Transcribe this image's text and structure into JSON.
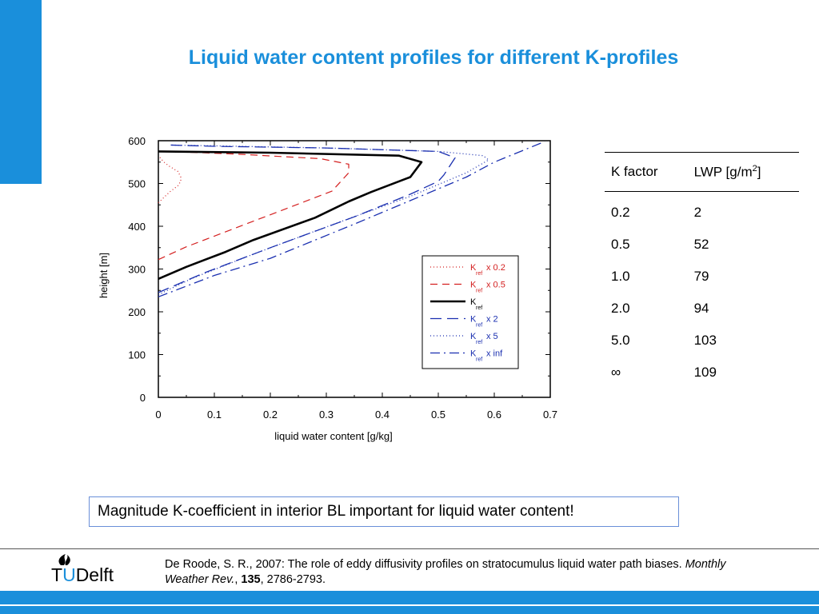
{
  "title": "Liquid water content profiles for different K-profiles",
  "chart_data": {
    "type": "line",
    "xlabel": "liquid water content [g/kg]",
    "ylabel": "height [m]",
    "xlim": [
      0,
      0.7
    ],
    "ylim": [
      0,
      600
    ],
    "xticks": [
      "0",
      "0.1",
      "0.2",
      "0.3",
      "0.4",
      "0.5",
      "0.6",
      "0.7"
    ],
    "yticks": [
      "0",
      "100",
      "200",
      "300",
      "400",
      "500",
      "600"
    ],
    "legend_position": "middle-right",
    "series": [
      {
        "name": "K_ref x 0.2",
        "legend_main": "K",
        "legend_sub": "ref",
        "legend_suffix": "x 0.2",
        "color": "#d42020",
        "dash": "1,3",
        "width": 1.2,
        "points": [
          [
            0,
            455
          ],
          [
            0.02,
            480
          ],
          [
            0.035,
            495
          ],
          [
            0.04,
            505
          ],
          [
            0.04,
            515
          ],
          [
            0.035,
            528
          ],
          [
            0.02,
            540
          ],
          [
            0.01,
            550
          ],
          [
            0,
            565
          ]
        ]
      },
      {
        "name": "K_ref x 0.5",
        "legend_main": "K",
        "legend_sub": "ref",
        "legend_suffix": "x 0.5",
        "color": "#d42020",
        "dash": "9,6",
        "width": 1.2,
        "points": [
          [
            0,
            322
          ],
          [
            0.05,
            352
          ],
          [
            0.13,
            392
          ],
          [
            0.17,
            412
          ],
          [
            0.25,
            452
          ],
          [
            0.31,
            482
          ],
          [
            0.34,
            525
          ],
          [
            0.34,
            545
          ],
          [
            0.29,
            558
          ],
          [
            0.15,
            568
          ],
          [
            0.08,
            572
          ],
          [
            0,
            575
          ]
        ]
      },
      {
        "name": "K_ref",
        "legend_main": "K",
        "legend_sub": "ref",
        "legend_suffix": "",
        "color": "#000000",
        "dash": "",
        "width": 2.6,
        "points": [
          [
            0,
            277
          ],
          [
            0.05,
            305
          ],
          [
            0.12,
            340
          ],
          [
            0.17,
            368
          ],
          [
            0.28,
            420
          ],
          [
            0.34,
            458
          ],
          [
            0.38,
            480
          ],
          [
            0.43,
            505
          ],
          [
            0.45,
            515
          ],
          [
            0.47,
            550
          ],
          [
            0.43,
            565
          ],
          [
            0.2,
            572
          ],
          [
            0,
            575
          ]
        ]
      },
      {
        "name": "K_ref x 2",
        "legend_main": "K",
        "legend_sub": "ref",
        "legend_suffix": "x 2",
        "color": "#1a2fb0",
        "dash": "14,7",
        "width": 1.3,
        "points": [
          [
            0,
            245
          ],
          [
            0.08,
            290
          ],
          [
            0.2,
            350
          ],
          [
            0.35,
            422
          ],
          [
            0.45,
            475
          ],
          [
            0.5,
            505
          ],
          [
            0.51,
            520
          ],
          [
            0.52,
            540
          ],
          [
            0.53,
            560
          ],
          [
            0.5,
            575
          ],
          [
            0.3,
            583
          ],
          [
            0.1,
            587
          ],
          [
            0.02,
            590
          ]
        ]
      },
      {
        "name": "K_ref x 5",
        "legend_main": "K",
        "legend_sub": "ref",
        "legend_suffix": "x 5",
        "color": "#1a2fb0",
        "dash": "1,3",
        "width": 1.3,
        "points": [
          [
            0,
            240
          ],
          [
            0.06,
            278
          ],
          [
            0.17,
            335
          ],
          [
            0.32,
            408
          ],
          [
            0.45,
            470
          ],
          [
            0.55,
            525
          ],
          [
            0.59,
            555
          ],
          [
            0.58,
            565
          ],
          [
            0.5,
            575
          ],
          [
            0.3,
            583
          ],
          [
            0.1,
            588
          ],
          [
            0.02,
            590
          ]
        ]
      },
      {
        "name": "K_ref x inf",
        "legend_main": "K",
        "legend_sub": "ref",
        "legend_suffix": "x inf",
        "color": "#1a2fb0",
        "dash": "12,5,2,5",
        "width": 1.3,
        "points": [
          [
            0,
            235
          ],
          [
            0.1,
            285
          ],
          [
            0.2,
            325
          ],
          [
            0.35,
            405
          ],
          [
            0.45,
            460
          ],
          [
            0.55,
            515
          ],
          [
            0.6,
            550
          ],
          [
            0.69,
            598
          ]
        ]
      }
    ]
  },
  "table": {
    "headers": [
      "K factor",
      "LWP [g/m",
      "2",
      "]"
    ],
    "rows": [
      [
        "0.2",
        "2"
      ],
      [
        "0.5",
        "52"
      ],
      [
        "1.0",
        "79"
      ],
      [
        "2.0",
        "94"
      ],
      [
        "5.0",
        "103"
      ],
      [
        "∞",
        "109"
      ]
    ]
  },
  "message": "Magnitude K-coefficient in interior BL important for liquid water content!",
  "logo": {
    "t": "T",
    "u": "U",
    "rest": "Delft"
  },
  "reference": {
    "authors": "De Roode, S. R., 2007:  The role of eddy diffusivity profiles on stratocumulus liquid water path biases. ",
    "journal": "Monthly Weather Rev.",
    "sep": ", ",
    "volume": "135",
    "pages": ", 2786-2793."
  },
  "colors": {
    "accent": "#1a8fdb",
    "red": "#d42020",
    "blue": "#1a2fb0"
  }
}
